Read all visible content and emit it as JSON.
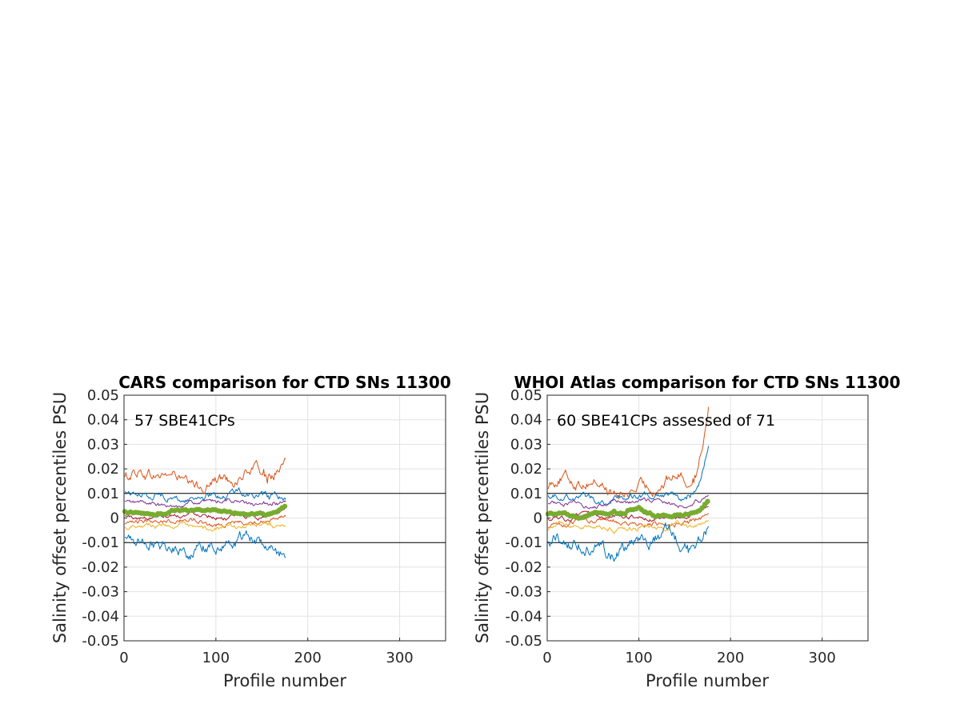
{
  "chart_data": [
    {
      "type": "line",
      "title": "CARS comparison for CTD SNs 11300",
      "xlabel": "Profile number",
      "ylabel": "Salinity offset percentiles PSU",
      "annotation": "57 SBE41CPs",
      "xlim": [
        0,
        350
      ],
      "ylim": [
        -0.05,
        0.05
      ],
      "xticks": [
        "0",
        "100",
        "200",
        "300"
      ],
      "yticks": [
        "0.05",
        "0.04",
        "0.03",
        "0.02",
        "0.01",
        "0",
        "-0.01",
        "-0.02",
        "-0.03",
        "-0.04",
        "-0.05"
      ],
      "grid": true,
      "reference_lines": [
        0.01,
        -0.01
      ],
      "x_end": 176,
      "series": [
        {
          "color": "#D95319",
          "base": 0.016,
          "amp": 0.0025,
          "end": 0.0245,
          "noise": 0.002
        },
        {
          "color": "#0072BD",
          "base": 0.009,
          "amp": 0.0012,
          "end": 0.0075,
          "noise": 0.0012
        },
        {
          "color": "#7E2F8E",
          "base": 0.006,
          "amp": 0.001,
          "end": 0.007,
          "noise": 0.0008
        },
        {
          "color": "#77AC30",
          "base": 0.0025,
          "amp": 0.0008,
          "end": 0.005,
          "noise": 0.0004,
          "thick": true
        },
        {
          "color": "#A2142F",
          "base": 0.001,
          "amp": 0.0008,
          "end": 0.004,
          "noise": 0.0008
        },
        {
          "color": "#D95319",
          "base": -0.0015,
          "amp": 0.001,
          "end": 0.001,
          "noise": 0.0009
        },
        {
          "color": "#EDB120",
          "base": -0.0035,
          "amp": 0.001,
          "end": -0.003,
          "noise": 0.0009
        },
        {
          "color": "#0072BD",
          "base": -0.011,
          "amp": 0.002,
          "end": -0.016,
          "noise": 0.0022
        }
      ]
    },
    {
      "type": "line",
      "title": "WHOI Atlas comparison for CTD SNs 11300",
      "xlabel": "Profile number",
      "ylabel": "Salinity offset percentiles PSU",
      "annotation": "60 SBE41CPs assessed of 71",
      "xlim": [
        0,
        350
      ],
      "ylim": [
        -0.05,
        0.05
      ],
      "xticks": [
        "0",
        "100",
        "200",
        "300"
      ],
      "yticks": [
        "0.05",
        "0.04",
        "0.03",
        "0.02",
        "0.01",
        "0",
        "-0.01",
        "-0.02",
        "-0.03",
        "-0.04",
        "-0.05"
      ],
      "grid": true,
      "reference_lines": [
        0.01,
        -0.01
      ],
      "x_end": 176,
      "series": [
        {
          "color": "#D95319",
          "base": 0.013,
          "amp": 0.003,
          "end": 0.045,
          "noise": 0.002
        },
        {
          "color": "#0072BD",
          "base": 0.0085,
          "amp": 0.0012,
          "end": 0.029,
          "noise": 0.0012
        },
        {
          "color": "#7E2F8E",
          "base": 0.006,
          "amp": 0.001,
          "end": 0.009,
          "noise": 0.0008
        },
        {
          "color": "#77AC30",
          "base": 0.002,
          "amp": 0.001,
          "end": 0.007,
          "noise": 0.0005,
          "thick": true
        },
        {
          "color": "#A2142F",
          "base": 0.0005,
          "amp": 0.0008,
          "end": 0.005,
          "noise": 0.0008
        },
        {
          "color": "#D95319",
          "base": -0.002,
          "amp": 0.001,
          "end": 0.002,
          "noise": 0.0009
        },
        {
          "color": "#EDB120",
          "base": -0.004,
          "amp": 0.001,
          "end": -0.001,
          "noise": 0.0009
        },
        {
          "color": "#0072BD",
          "base": -0.011,
          "amp": 0.0025,
          "end": -0.004,
          "noise": 0.0025
        }
      ]
    }
  ]
}
